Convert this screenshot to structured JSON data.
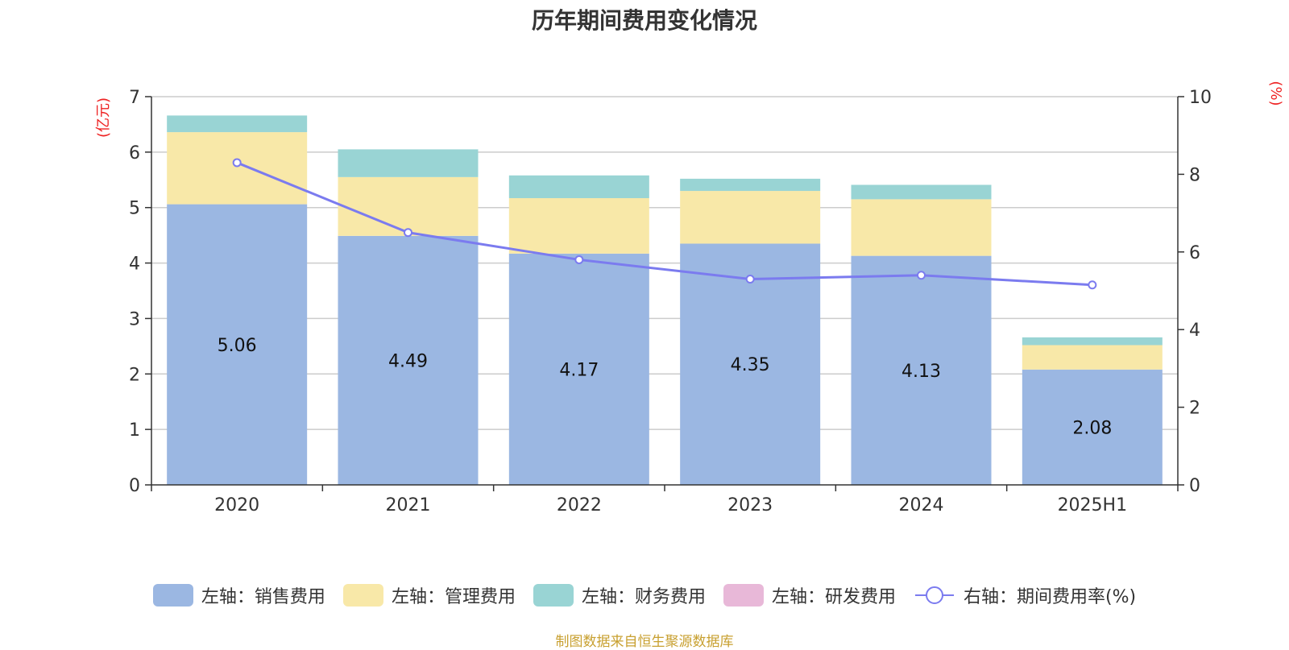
{
  "chart_data": {
    "type": "bar",
    "title": "历年期间费用变化情况",
    "categories": [
      "2020",
      "2021",
      "2022",
      "2023",
      "2024",
      "2025H1"
    ],
    "left_axis": {
      "unit_label": "(亿元)",
      "ylim": [
        0,
        7
      ],
      "ticks": [
        "0",
        "1",
        "2",
        "3",
        "4",
        "5",
        "6",
        "7"
      ]
    },
    "right_axis": {
      "unit_label": "(%)",
      "ylim": [
        0,
        10
      ],
      "ticks": [
        "0",
        "2",
        "4",
        "6",
        "8",
        "10"
      ]
    },
    "series": [
      {
        "name": "左轴：销售费用",
        "kind": "bar",
        "axis": "left",
        "color": "#9bb7e2",
        "values": [
          5.06,
          4.49,
          4.17,
          4.35,
          4.13,
          2.08
        ],
        "labels": [
          "5.06",
          "4.49",
          "4.17",
          "4.35",
          "4.13",
          "2.08"
        ]
      },
      {
        "name": "左轴：管理费用",
        "kind": "bar",
        "axis": "left",
        "color": "#f8e8a8",
        "values": [
          1.3,
          1.06,
          1.0,
          0.95,
          1.02,
          0.44
        ]
      },
      {
        "name": "左轴：财务费用",
        "kind": "bar",
        "axis": "left",
        "color": "#99d4d4",
        "values": [
          0.3,
          0.5,
          0.41,
          0.22,
          0.26,
          0.14
        ]
      },
      {
        "name": "左轴：研发费用",
        "kind": "bar",
        "axis": "left",
        "color": "#e8b8d8",
        "values": [
          0,
          0,
          0,
          0,
          0,
          0
        ]
      },
      {
        "name": "右轴：期间费用率(%)",
        "kind": "line",
        "axis": "right",
        "color": "#7b7bef",
        "values": [
          8.3,
          6.5,
          5.8,
          5.3,
          5.4,
          5.15
        ]
      }
    ],
    "grid": true,
    "legend_position": "bottom"
  },
  "footer": {
    "source": "制图数据来自恒生聚源数据库"
  }
}
